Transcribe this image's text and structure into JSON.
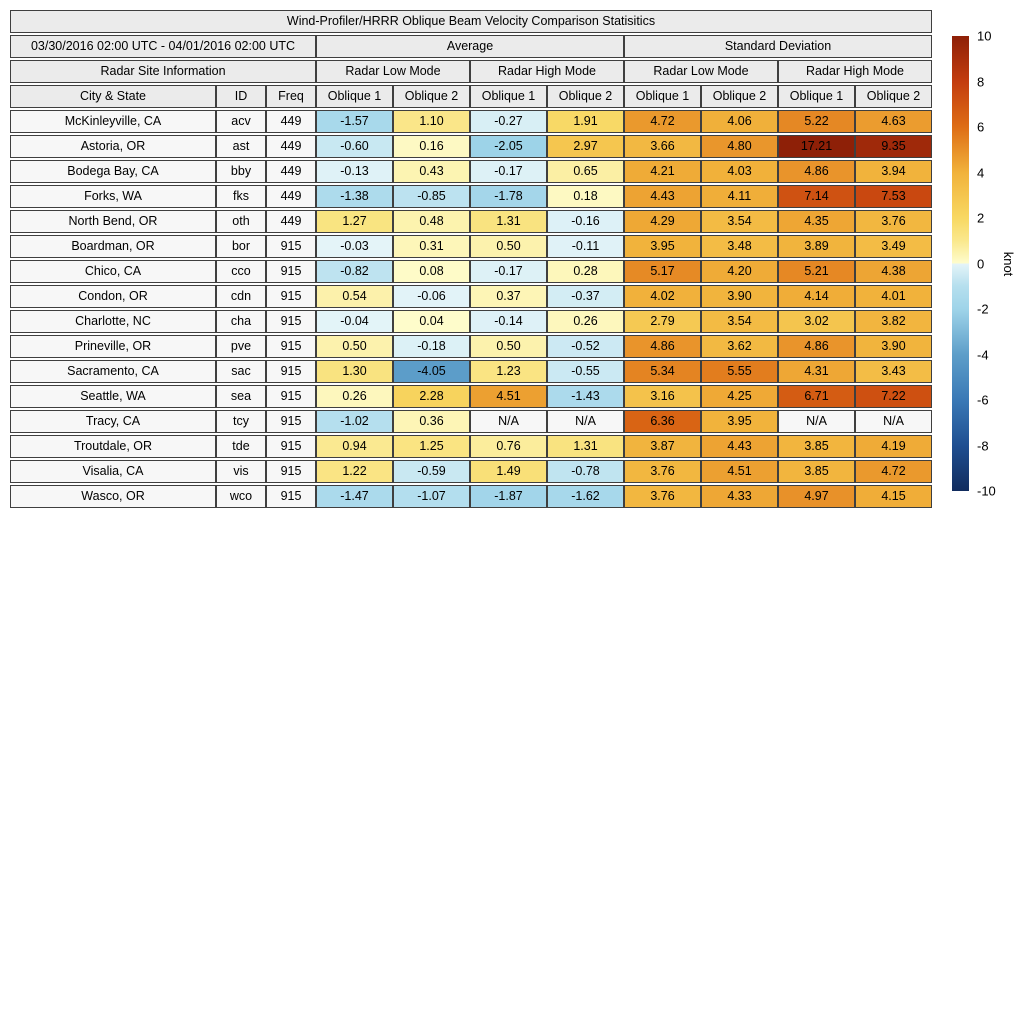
{
  "chart_data": {
    "type": "heatmap-table",
    "title": "Wind-Profiler/HRRR Oblique Beam Velocity Comparison Statisitics",
    "period": "03/30/2016 02:00 UTC - 04/01/2016 02:00 UTC",
    "group_average": "Average",
    "group_std": "Standard Deviation",
    "group_site_info": "Radar Site Information",
    "group_low_mode": "Radar Low Mode",
    "group_high_mode": "Radar High Mode",
    "col_city": "City & State",
    "col_id": "ID",
    "col_freq": "Freq",
    "col_oblique1": "Oblique 1",
    "col_oblique2": "Oblique 2",
    "na_label": "N/A",
    "value_range": [
      -10,
      10
    ],
    "rows": [
      {
        "city": "McKinleyville, CA",
        "id": "acv",
        "freq": "449",
        "values": [
          "-1.57",
          "1.10",
          "-0.27",
          "1.91",
          "4.72",
          "4.06",
          "5.22",
          "4.63"
        ]
      },
      {
        "city": "Astoria, OR",
        "id": "ast",
        "freq": "449",
        "values": [
          "-0.60",
          "0.16",
          "-2.05",
          "2.97",
          "3.66",
          "4.80",
          "17.21",
          "9.35"
        ]
      },
      {
        "city": "Bodega Bay, CA",
        "id": "bby",
        "freq": "449",
        "values": [
          "-0.13",
          "0.43",
          "-0.17",
          "0.65",
          "4.21",
          "4.03",
          "4.86",
          "3.94"
        ]
      },
      {
        "city": "Forks, WA",
        "id": "fks",
        "freq": "449",
        "values": [
          "-1.38",
          "-0.85",
          "-1.78",
          "0.18",
          "4.43",
          "4.11",
          "7.14",
          "7.53"
        ]
      },
      {
        "city": "North Bend, OR",
        "id": "oth",
        "freq": "449",
        "values": [
          "1.27",
          "0.48",
          "1.31",
          "-0.16",
          "4.29",
          "3.54",
          "4.35",
          "3.76"
        ]
      },
      {
        "city": "Boardman, OR",
        "id": "bor",
        "freq": "915",
        "values": [
          "-0.03",
          "0.31",
          "0.50",
          "-0.11",
          "3.95",
          "3.48",
          "3.89",
          "3.49"
        ]
      },
      {
        "city": "Chico, CA",
        "id": "cco",
        "freq": "915",
        "values": [
          "-0.82",
          "0.08",
          "-0.17",
          "0.28",
          "5.17",
          "4.20",
          "5.21",
          "4.38"
        ]
      },
      {
        "city": "Condon, OR",
        "id": "cdn",
        "freq": "915",
        "values": [
          "0.54",
          "-0.06",
          "0.37",
          "-0.37",
          "4.02",
          "3.90",
          "4.14",
          "4.01"
        ]
      },
      {
        "city": "Charlotte, NC",
        "id": "cha",
        "freq": "915",
        "values": [
          "-0.04",
          "0.04",
          "-0.14",
          "0.26",
          "2.79",
          "3.54",
          "3.02",
          "3.82"
        ]
      },
      {
        "city": "Prineville, OR",
        "id": "pve",
        "freq": "915",
        "values": [
          "0.50",
          "-0.18",
          "0.50",
          "-0.52",
          "4.86",
          "3.62",
          "4.86",
          "3.90"
        ]
      },
      {
        "city": "Sacramento, CA",
        "id": "sac",
        "freq": "915",
        "values": [
          "1.30",
          "-4.05",
          "1.23",
          "-0.55",
          "5.34",
          "5.55",
          "4.31",
          "3.43"
        ]
      },
      {
        "city": "Seattle, WA",
        "id": "sea",
        "freq": "915",
        "values": [
          "0.26",
          "2.28",
          "4.51",
          "-1.43",
          "3.16",
          "4.25",
          "6.71",
          "7.22"
        ]
      },
      {
        "city": "Tracy, CA",
        "id": "tcy",
        "freq": "915",
        "values": [
          "-1.02",
          "0.36",
          "N/A",
          "N/A",
          "6.36",
          "3.95",
          "N/A",
          "N/A"
        ]
      },
      {
        "city": "Troutdale, OR",
        "id": "tde",
        "freq": "915",
        "values": [
          "0.94",
          "1.25",
          "0.76",
          "1.31",
          "3.87",
          "4.43",
          "3.85",
          "4.19"
        ]
      },
      {
        "city": "Visalia, CA",
        "id": "vis",
        "freq": "915",
        "values": [
          "1.22",
          "-0.59",
          "1.49",
          "-0.78",
          "3.76",
          "4.51",
          "3.85",
          "4.72"
        ]
      },
      {
        "city": "Wasco, OR",
        "id": "wco",
        "freq": "915",
        "values": [
          "-1.47",
          "-1.07",
          "-1.87",
          "-1.62",
          "3.76",
          "4.33",
          "4.97",
          "4.15"
        ]
      }
    ],
    "colorbar": {
      "unit": "knot",
      "ticks": [
        "10",
        "8",
        "6",
        "4",
        "2",
        "0",
        "-2",
        "-4",
        "-6",
        "-8",
        "-10"
      ],
      "tick_values": [
        10,
        8,
        6,
        4,
        2,
        0,
        -2,
        -4,
        -6,
        -8,
        -10
      ],
      "na_color": "#f7f7f7",
      "stops": [
        {
          "v": -10,
          "c": "#112c5e"
        },
        {
          "v": -8,
          "c": "#1f4f91"
        },
        {
          "v": -6,
          "c": "#3a79b6"
        },
        {
          "v": -4,
          "c": "#5d9ec9"
        },
        {
          "v": -2,
          "c": "#9fd4e9"
        },
        {
          "v": -1,
          "c": "#b5dfee"
        },
        {
          "v": -0.02,
          "c": "#e4f4f8"
        },
        {
          "v": 0.02,
          "c": "#fefccc"
        },
        {
          "v": 1,
          "c": "#fae88d"
        },
        {
          "v": 2,
          "c": "#f8d862"
        },
        {
          "v": 4,
          "c": "#f1b23b"
        },
        {
          "v": 6,
          "c": "#de6d15"
        },
        {
          "v": 8,
          "c": "#c33d0f"
        },
        {
          "v": 10,
          "c": "#8e2007"
        }
      ]
    }
  }
}
